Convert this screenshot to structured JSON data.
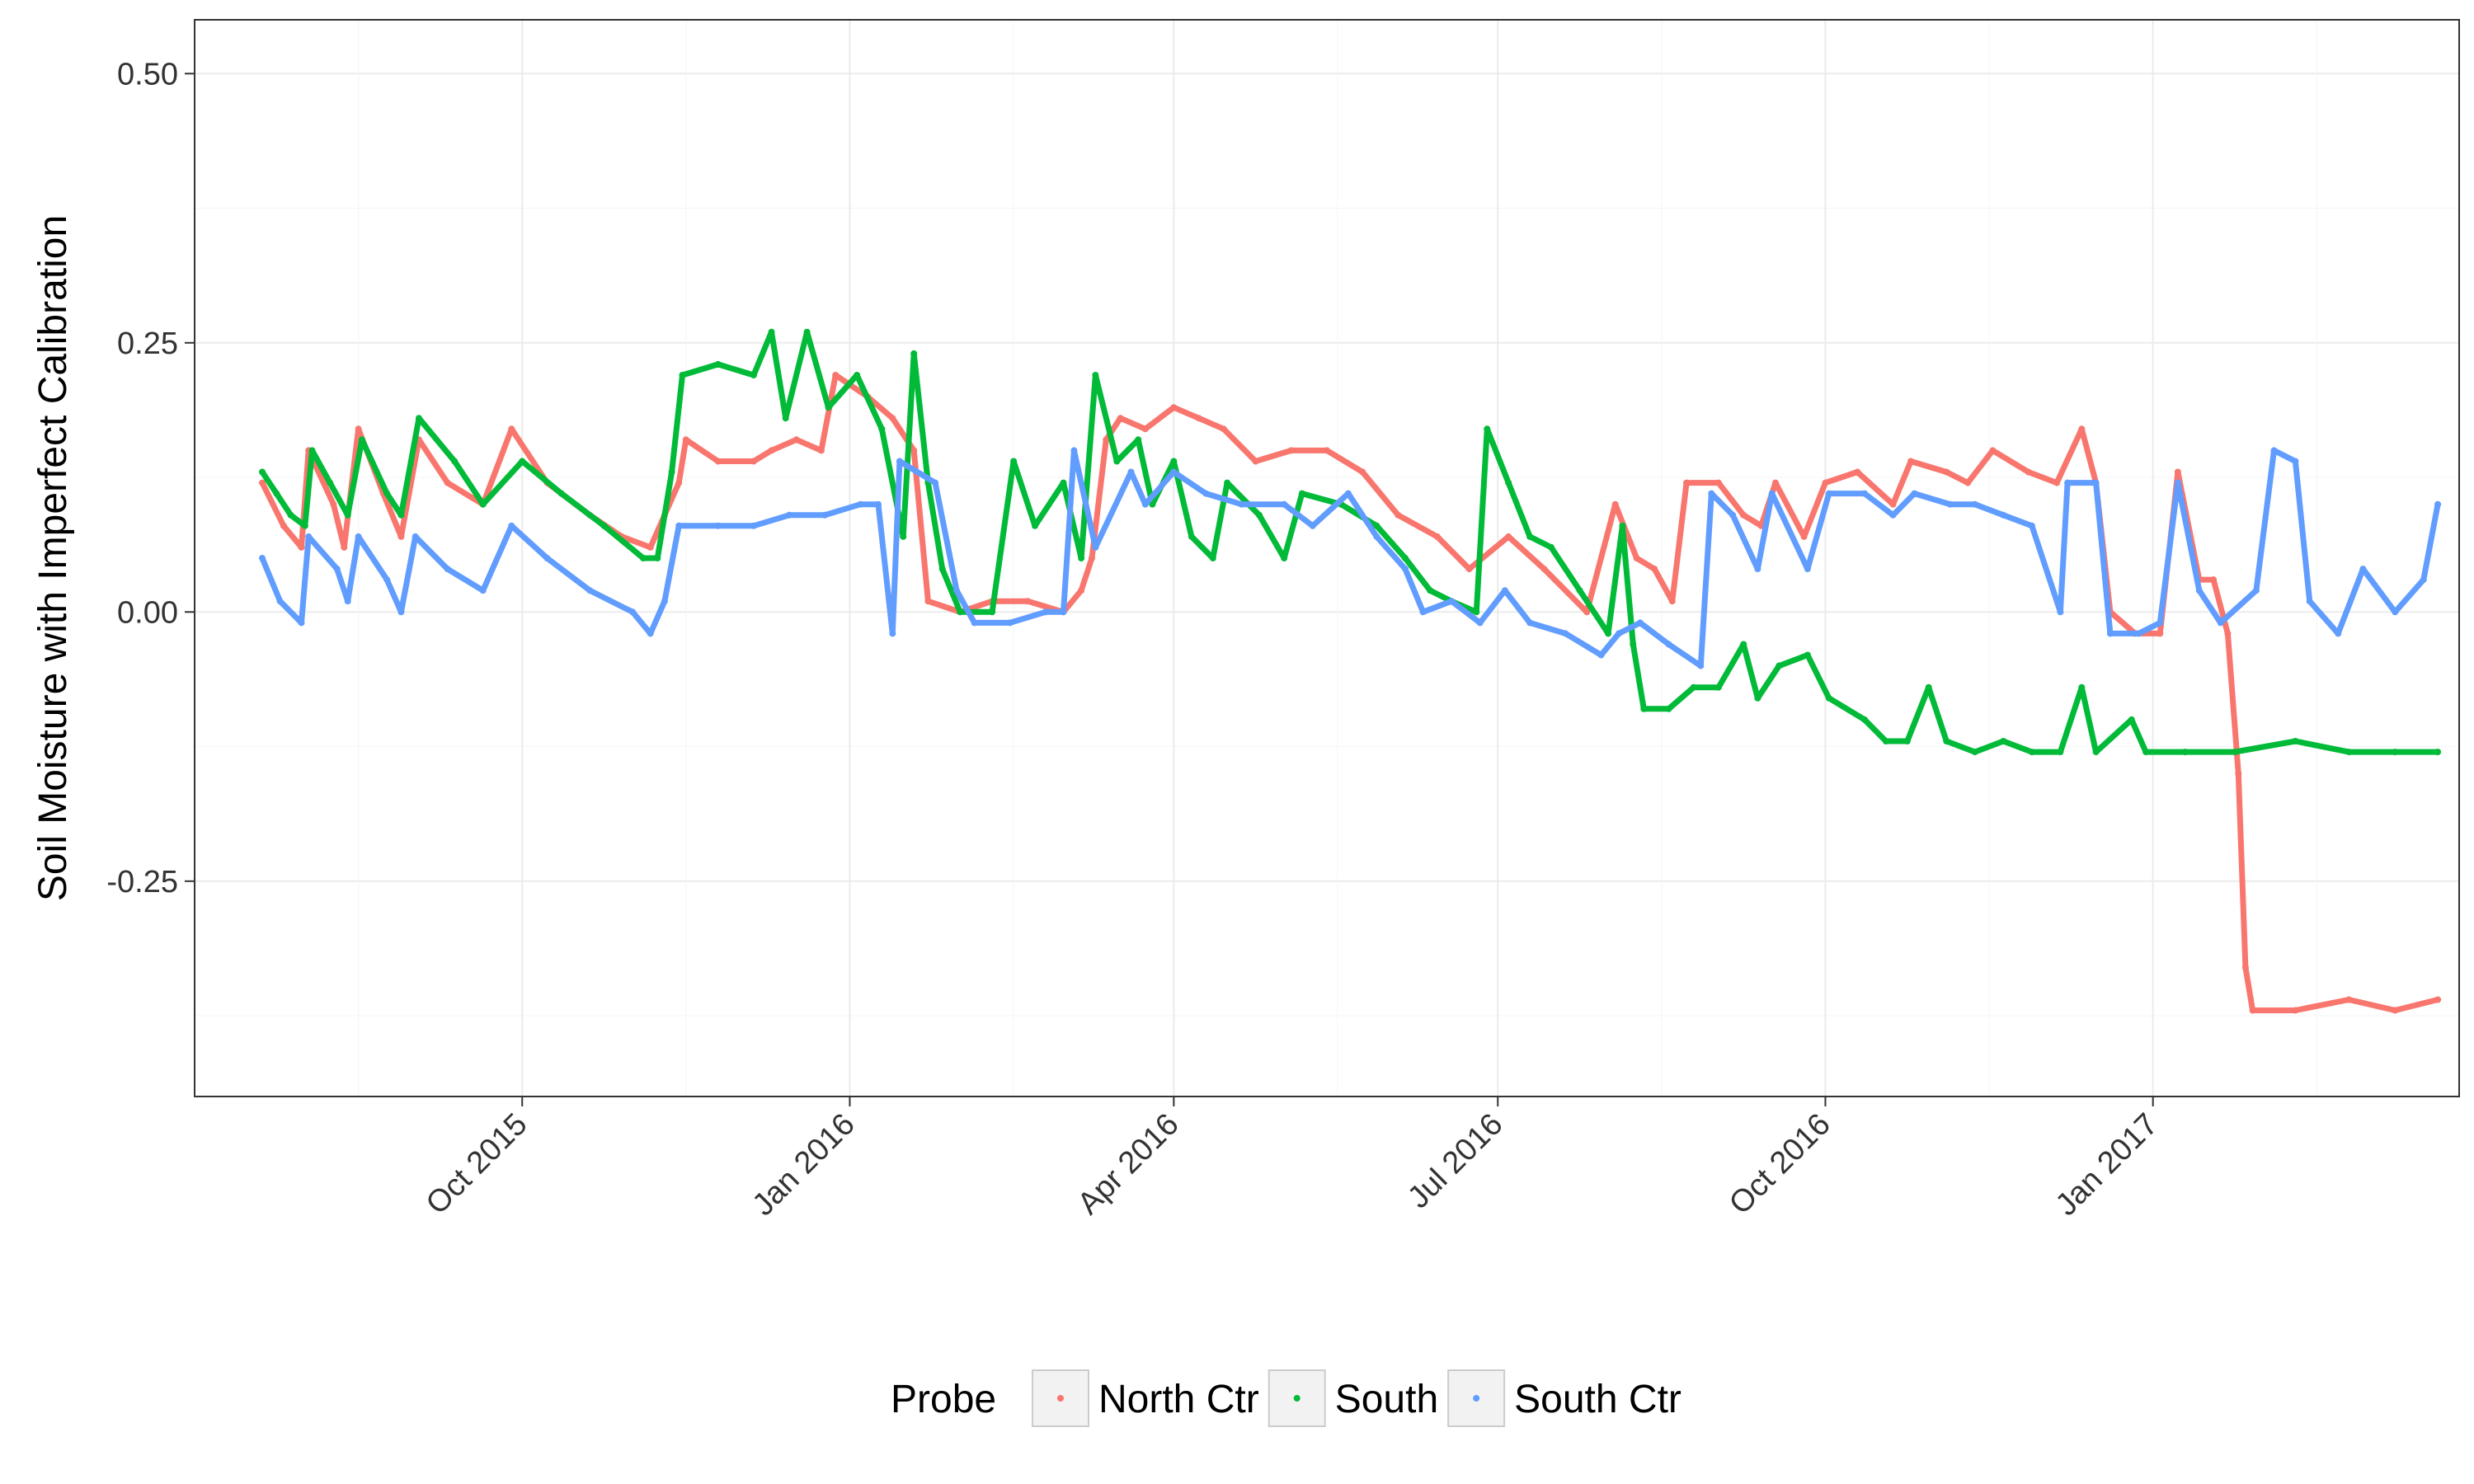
{
  "chart_data": {
    "type": "scatter",
    "title": "",
    "xlabel": "",
    "ylabel": "Soil Moisture with Imperfect Calibration",
    "x_axis": {
      "kind": "date",
      "range": [
        "2015-07-01",
        "2017-03-28"
      ],
      "ticks": [
        {
          "date": "2015-10-01",
          "label": "Oct 2015"
        },
        {
          "date": "2016-01-01",
          "label": "Jan 2016"
        },
        {
          "date": "2016-04-01",
          "label": "Apr 2016"
        },
        {
          "date": "2016-07-01",
          "label": "Jul 2016"
        },
        {
          "date": "2016-10-01",
          "label": "Oct 2016"
        },
        {
          "date": "2017-01-01",
          "label": "Jan 2017"
        }
      ]
    },
    "y_axis": {
      "range": [
        -0.45,
        0.55
      ],
      "ticks": [
        {
          "value": 0.5,
          "label": "0.50"
        },
        {
          "value": 0.25,
          "label": "0.25"
        },
        {
          "value": 0.0,
          "label": "0.00"
        },
        {
          "value": -0.25,
          "label": "-0.25"
        }
      ]
    },
    "grid": true,
    "legend": {
      "title": "Probe",
      "position": "bottom"
    },
    "series": [
      {
        "name": "North Ctr",
        "color": "#F8766D",
        "points": [
          [
            "2015-07-20",
            0.12
          ],
          [
            "2015-07-26",
            0.08
          ],
          [
            "2015-07-31",
            0.06
          ],
          [
            "2015-08-02",
            0.15
          ],
          [
            "2015-08-09",
            0.1
          ],
          [
            "2015-08-12",
            0.06
          ],
          [
            "2015-08-16",
            0.17
          ],
          [
            "2015-08-23",
            0.11
          ],
          [
            "2015-08-28",
            0.07
          ],
          [
            "2015-09-02",
            0.16
          ],
          [
            "2015-09-10",
            0.12
          ],
          [
            "2015-09-20",
            0.1
          ],
          [
            "2015-09-28",
            0.17
          ],
          [
            "2015-10-08",
            0.12
          ],
          [
            "2015-10-20",
            0.09
          ],
          [
            "2015-10-29",
            0.07
          ],
          [
            "2015-11-06",
            0.06
          ],
          [
            "2015-11-10",
            0.09
          ],
          [
            "2015-11-14",
            0.12
          ],
          [
            "2015-11-16",
            0.16
          ],
          [
            "2015-11-25",
            0.14
          ],
          [
            "2015-12-05",
            0.14
          ],
          [
            "2015-12-10",
            0.15
          ],
          [
            "2015-12-17",
            0.16
          ],
          [
            "2015-12-24",
            0.15
          ],
          [
            "2015-12-28",
            0.22
          ],
          [
            "2016-01-06",
            0.2
          ],
          [
            "2016-01-13",
            0.18
          ],
          [
            "2016-01-19",
            0.15
          ],
          [
            "2016-01-23",
            0.01
          ],
          [
            "2016-02-01",
            0.0
          ],
          [
            "2016-02-10",
            0.01
          ],
          [
            "2016-02-20",
            0.01
          ],
          [
            "2016-03-01",
            0.0
          ],
          [
            "2016-03-06",
            0.02
          ],
          [
            "2016-03-09",
            0.05
          ],
          [
            "2016-03-13",
            0.16
          ],
          [
            "2016-03-17",
            0.18
          ],
          [
            "2016-03-24",
            0.17
          ],
          [
            "2016-04-01",
            0.19
          ],
          [
            "2016-04-08",
            0.18
          ],
          [
            "2016-04-15",
            0.17
          ],
          [
            "2016-04-24",
            0.14
          ],
          [
            "2016-05-04",
            0.15
          ],
          [
            "2016-05-14",
            0.15
          ],
          [
            "2016-05-24",
            0.13
          ],
          [
            "2016-06-03",
            0.09
          ],
          [
            "2016-06-14",
            0.07
          ],
          [
            "2016-06-23",
            0.04
          ],
          [
            "2016-07-04",
            0.07
          ],
          [
            "2016-07-14",
            0.04
          ],
          [
            "2016-07-26",
            0.0
          ],
          [
            "2016-08-03",
            0.1
          ],
          [
            "2016-08-09",
            0.05
          ],
          [
            "2016-08-14",
            0.04
          ],
          [
            "2016-08-19",
            0.01
          ],
          [
            "2016-08-23",
            0.12
          ],
          [
            "2016-09-01",
            0.12
          ],
          [
            "2016-09-08",
            0.09
          ],
          [
            "2016-09-13",
            0.08
          ],
          [
            "2016-09-17",
            0.12
          ],
          [
            "2016-09-25",
            0.07
          ],
          [
            "2016-10-01",
            0.12
          ],
          [
            "2016-10-10",
            0.13
          ],
          [
            "2016-10-20",
            0.1
          ],
          [
            "2016-10-25",
            0.14
          ],
          [
            "2016-11-04",
            0.13
          ],
          [
            "2016-11-10",
            0.12
          ],
          [
            "2016-11-17",
            0.15
          ],
          [
            "2016-11-27",
            0.13
          ],
          [
            "2016-12-05",
            0.12
          ],
          [
            "2016-12-12",
            0.17
          ],
          [
            "2016-12-16",
            0.12
          ],
          [
            "2016-12-20",
            0.0
          ],
          [
            "2016-12-27",
            -0.02
          ],
          [
            "2017-01-03",
            -0.02
          ],
          [
            "2017-01-08",
            0.13
          ],
          [
            "2017-01-14",
            0.03
          ],
          [
            "2017-01-18",
            0.03
          ],
          [
            "2017-01-22",
            -0.02
          ],
          [
            "2017-01-25",
            -0.15
          ],
          [
            "2017-01-27",
            -0.33
          ],
          [
            "2017-01-29",
            -0.37
          ],
          [
            "2017-02-10",
            -0.37
          ],
          [
            "2017-02-25",
            -0.36
          ],
          [
            "2017-03-10",
            -0.37
          ],
          [
            "2017-03-22",
            -0.36
          ]
        ]
      },
      {
        "name": "South",
        "color": "#00BA38",
        "points": [
          [
            "2015-07-20",
            0.13
          ],
          [
            "2015-07-24",
            0.11
          ],
          [
            "2015-07-28",
            0.09
          ],
          [
            "2015-08-01",
            0.08
          ],
          [
            "2015-08-03",
            0.15
          ],
          [
            "2015-08-08",
            0.12
          ],
          [
            "2015-08-13",
            0.09
          ],
          [
            "2015-08-17",
            0.16
          ],
          [
            "2015-08-24",
            0.11
          ],
          [
            "2015-08-28",
            0.09
          ],
          [
            "2015-09-02",
            0.18
          ],
          [
            "2015-09-12",
            0.14
          ],
          [
            "2015-09-20",
            0.1
          ],
          [
            "2015-10-01",
            0.14
          ],
          [
            "2015-10-12",
            0.11
          ],
          [
            "2015-10-24",
            0.08
          ],
          [
            "2015-11-04",
            0.05
          ],
          [
            "2015-11-08",
            0.05
          ],
          [
            "2015-11-12",
            0.13
          ],
          [
            "2015-11-15",
            0.22
          ],
          [
            "2015-11-25",
            0.23
          ],
          [
            "2015-12-05",
            0.22
          ],
          [
            "2015-12-10",
            0.26
          ],
          [
            "2015-12-14",
            0.18
          ],
          [
            "2015-12-20",
            0.26
          ],
          [
            "2015-12-26",
            0.19
          ],
          [
            "2016-01-03",
            0.22
          ],
          [
            "2016-01-10",
            0.17
          ],
          [
            "2016-01-16",
            0.07
          ],
          [
            "2016-01-19",
            0.24
          ],
          [
            "2016-01-23",
            0.12
          ],
          [
            "2016-01-27",
            0.04
          ],
          [
            "2016-02-01",
            0.0
          ],
          [
            "2016-02-10",
            0.0
          ],
          [
            "2016-02-16",
            0.14
          ],
          [
            "2016-02-22",
            0.08
          ],
          [
            "2016-03-01",
            0.12
          ],
          [
            "2016-03-06",
            0.05
          ],
          [
            "2016-03-10",
            0.22
          ],
          [
            "2016-03-16",
            0.14
          ],
          [
            "2016-03-22",
            0.16
          ],
          [
            "2016-03-26",
            0.1
          ],
          [
            "2016-04-01",
            0.14
          ],
          [
            "2016-04-06",
            0.07
          ],
          [
            "2016-04-12",
            0.05
          ],
          [
            "2016-04-16",
            0.12
          ],
          [
            "2016-04-25",
            0.09
          ],
          [
            "2016-05-02",
            0.05
          ],
          [
            "2016-05-07",
            0.11
          ],
          [
            "2016-05-18",
            0.1
          ],
          [
            "2016-05-28",
            0.08
          ],
          [
            "2016-06-05",
            0.05
          ],
          [
            "2016-06-12",
            0.02
          ],
          [
            "2016-06-18",
            0.01
          ],
          [
            "2016-06-25",
            0.0
          ],
          [
            "2016-06-28",
            0.17
          ],
          [
            "2016-07-04",
            0.12
          ],
          [
            "2016-07-10",
            0.07
          ],
          [
            "2016-07-16",
            0.06
          ],
          [
            "2016-07-24",
            0.02
          ],
          [
            "2016-08-01",
            -0.02
          ],
          [
            "2016-08-05",
            0.08
          ],
          [
            "2016-08-08",
            -0.03
          ],
          [
            "2016-08-11",
            -0.09
          ],
          [
            "2016-08-18",
            -0.09
          ],
          [
            "2016-08-25",
            -0.07
          ],
          [
            "2016-09-01",
            -0.07
          ],
          [
            "2016-09-08",
            -0.03
          ],
          [
            "2016-09-12",
            -0.08
          ],
          [
            "2016-09-18",
            -0.05
          ],
          [
            "2016-09-26",
            -0.04
          ],
          [
            "2016-10-02",
            -0.08
          ],
          [
            "2016-10-12",
            -0.1
          ],
          [
            "2016-10-18",
            -0.12
          ],
          [
            "2016-10-24",
            -0.12
          ],
          [
            "2016-10-30",
            -0.07
          ],
          [
            "2016-11-04",
            -0.12
          ],
          [
            "2016-11-12",
            -0.13
          ],
          [
            "2016-11-20",
            -0.12
          ],
          [
            "2016-11-28",
            -0.13
          ],
          [
            "2016-12-06",
            -0.13
          ],
          [
            "2016-12-12",
            -0.07
          ],
          [
            "2016-12-16",
            -0.13
          ],
          [
            "2016-12-26",
            -0.1
          ],
          [
            "2016-12-30",
            -0.13
          ],
          [
            "2017-01-10",
            -0.13
          ],
          [
            "2017-01-24",
            -0.13
          ],
          [
            "2017-02-10",
            -0.12
          ],
          [
            "2017-02-25",
            -0.13
          ],
          [
            "2017-03-10",
            -0.13
          ],
          [
            "2017-03-22",
            -0.13
          ]
        ]
      },
      {
        "name": "South Ctr",
        "color": "#619CFF",
        "points": [
          [
            "2015-07-20",
            0.05
          ],
          [
            "2015-07-25",
            0.01
          ],
          [
            "2015-07-31",
            -0.01
          ],
          [
            "2015-08-02",
            0.07
          ],
          [
            "2015-08-10",
            0.04
          ],
          [
            "2015-08-13",
            0.01
          ],
          [
            "2015-08-16",
            0.07
          ],
          [
            "2015-08-24",
            0.03
          ],
          [
            "2015-08-28",
            0.0
          ],
          [
            "2015-09-01",
            0.07
          ],
          [
            "2015-09-10",
            0.04
          ],
          [
            "2015-09-20",
            0.02
          ],
          [
            "2015-09-28",
            0.08
          ],
          [
            "2015-10-08",
            0.05
          ],
          [
            "2015-10-20",
            0.02
          ],
          [
            "2015-11-01",
            0.0
          ],
          [
            "2015-11-06",
            -0.02
          ],
          [
            "2015-11-10",
            0.01
          ],
          [
            "2015-11-14",
            0.08
          ],
          [
            "2015-11-25",
            0.08
          ],
          [
            "2015-12-05",
            0.08
          ],
          [
            "2015-12-15",
            0.09
          ],
          [
            "2015-12-25",
            0.09
          ],
          [
            "2016-01-04",
            0.1
          ],
          [
            "2016-01-09",
            0.1
          ],
          [
            "2016-01-13",
            -0.02
          ],
          [
            "2016-01-15",
            0.14
          ],
          [
            "2016-01-25",
            0.12
          ],
          [
            "2016-01-31",
            0.02
          ],
          [
            "2016-02-05",
            -0.01
          ],
          [
            "2016-02-15",
            -0.01
          ],
          [
            "2016-02-25",
            0.0
          ],
          [
            "2016-03-01",
            0.0
          ],
          [
            "2016-03-04",
            0.15
          ],
          [
            "2016-03-10",
            0.06
          ],
          [
            "2016-03-20",
            0.13
          ],
          [
            "2016-03-24",
            0.1
          ],
          [
            "2016-04-01",
            0.13
          ],
          [
            "2016-04-10",
            0.11
          ],
          [
            "2016-04-20",
            0.1
          ],
          [
            "2016-05-02",
            0.1
          ],
          [
            "2016-05-10",
            0.08
          ],
          [
            "2016-05-20",
            0.11
          ],
          [
            "2016-05-28",
            0.07
          ],
          [
            "2016-06-05",
            0.04
          ],
          [
            "2016-06-10",
            0.0
          ],
          [
            "2016-06-18",
            0.01
          ],
          [
            "2016-06-26",
            -0.01
          ],
          [
            "2016-07-03",
            0.02
          ],
          [
            "2016-07-10",
            -0.01
          ],
          [
            "2016-07-20",
            -0.02
          ],
          [
            "2016-07-30",
            -0.04
          ],
          [
            "2016-08-04",
            -0.02
          ],
          [
            "2016-08-10",
            -0.01
          ],
          [
            "2016-08-18",
            -0.03
          ],
          [
            "2016-08-27",
            -0.05
          ],
          [
            "2016-08-30",
            0.11
          ],
          [
            "2016-09-05",
            0.09
          ],
          [
            "2016-09-12",
            0.04
          ],
          [
            "2016-09-16",
            0.11
          ],
          [
            "2016-09-26",
            0.04
          ],
          [
            "2016-10-02",
            0.11
          ],
          [
            "2016-10-12",
            0.11
          ],
          [
            "2016-10-20",
            0.09
          ],
          [
            "2016-10-26",
            0.11
          ],
          [
            "2016-11-05",
            0.1
          ],
          [
            "2016-11-12",
            0.1
          ],
          [
            "2016-11-20",
            0.09
          ],
          [
            "2016-11-28",
            0.08
          ],
          [
            "2016-12-06",
            0.0
          ],
          [
            "2016-12-08",
            0.12
          ],
          [
            "2016-12-16",
            0.12
          ],
          [
            "2016-12-20",
            -0.02
          ],
          [
            "2016-12-28",
            -0.02
          ],
          [
            "2017-01-03",
            -0.01
          ],
          [
            "2017-01-08",
            0.12
          ],
          [
            "2017-01-14",
            0.02
          ],
          [
            "2017-01-20",
            -0.01
          ],
          [
            "2017-01-30",
            0.02
          ],
          [
            "2017-02-04",
            0.15
          ],
          [
            "2017-02-10",
            0.14
          ],
          [
            "2017-02-14",
            0.01
          ],
          [
            "2017-02-22",
            -0.02
          ],
          [
            "2017-03-01",
            0.04
          ],
          [
            "2017-03-10",
            0.0
          ],
          [
            "2017-03-18",
            0.03
          ],
          [
            "2017-03-22",
            0.1
          ]
        ]
      }
    ]
  }
}
